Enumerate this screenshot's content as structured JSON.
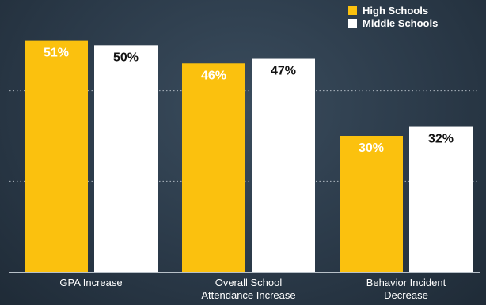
{
  "chart_data": {
    "type": "bar",
    "categories": [
      [
        "GPA Increase"
      ],
      [
        "Overall School",
        "Attendance Increase"
      ],
      [
        "Behavior Incident",
        "Decrease"
      ]
    ],
    "series": [
      {
        "name": "High Schools",
        "values": [
          51,
          46,
          30
        ],
        "value_labels": [
          "51%",
          "46%",
          "30%"
        ],
        "color": "#fbc10e",
        "label_color": "#ffffff"
      },
      {
        "name": "Middle Schools",
        "values": [
          50,
          47,
          32
        ],
        "value_labels": [
          "50%",
          "47%",
          "32%"
        ],
        "color": "#ffffff",
        "label_color": "#111111"
      }
    ],
    "title": "",
    "xlabel": "",
    "ylabel": "",
    "ylim": [
      0,
      60
    ],
    "grid": true,
    "legend": "top-right"
  },
  "colors": {
    "background": "#2b3a49",
    "gridline": "#c4ccd4"
  }
}
